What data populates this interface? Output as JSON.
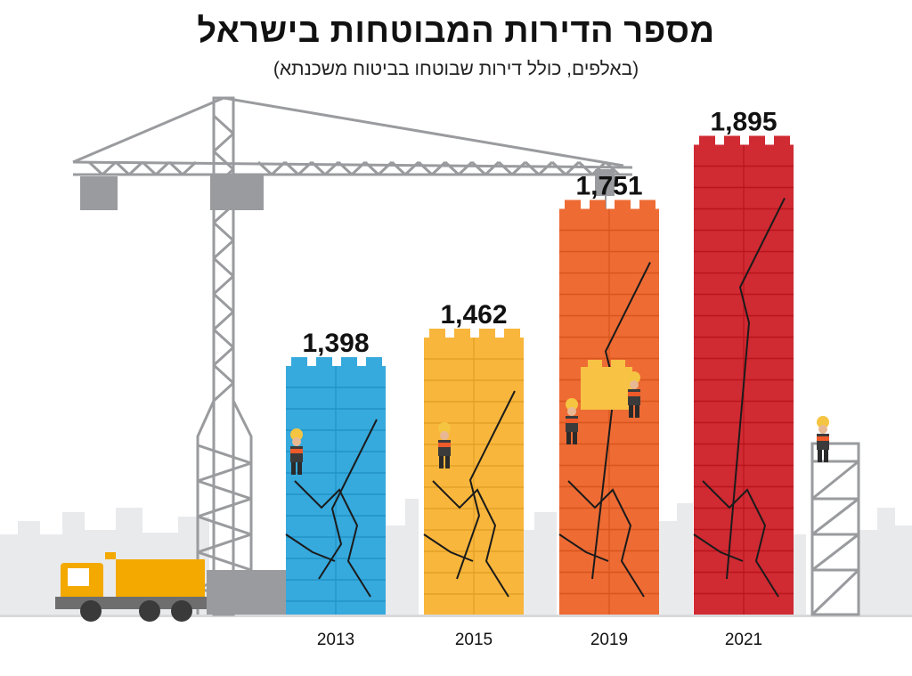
{
  "chart_data": {
    "type": "bar",
    "title": "מספר הדירות המבוטחות בישראל",
    "subtitle": "(באלפים, כולל דירות שבוטחו בביטוח משכנתא)",
    "categories": [
      "2013",
      "2015",
      "2019",
      "2021"
    ],
    "values": [
      1398,
      1462,
      1751,
      1895
    ],
    "value_labels": [
      "1,398",
      "1,462",
      "1,751",
      "1,895"
    ],
    "colors": [
      "#36a9dd",
      "#f8b63c",
      "#ee6b34",
      "#d02a33"
    ],
    "legend": "none",
    "grid": false
  }
}
